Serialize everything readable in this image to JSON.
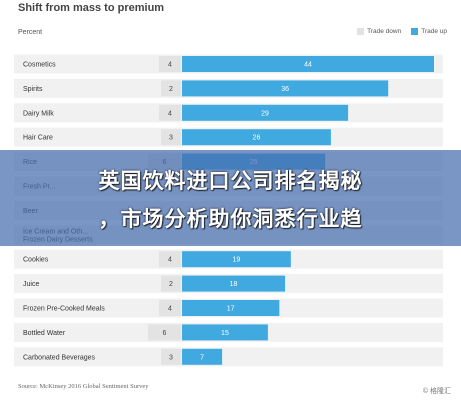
{
  "chart_data": {
    "type": "bar",
    "title": "Shift from mass to premium",
    "axis_caption": "Percent",
    "legend": [
      {
        "label": "Trade down",
        "color": "#e3e3e3"
      },
      {
        "label": "Trade up",
        "color": "#40a9e0"
      }
    ],
    "categories": [
      "Cosmetics",
      "Spirits",
      "Dairy Milk",
      "Hair Care",
      "Rice",
      "Fresh Pr...",
      "Beer",
      "Ice Cream and Oth... Frozen Dairy Desserts",
      "Cookies",
      "Juice",
      "Frozen Pre-Cooked Meals",
      "Bottled Water",
      "Carbonated Beverages"
    ],
    "series": [
      {
        "name": "Trade down",
        "values": [
          4,
          2,
          4,
          3,
          6,
          null,
          null,
          null,
          4,
          2,
          4,
          6,
          3
        ]
      },
      {
        "name": "Trade up",
        "values": [
          44,
          36,
          29,
          26,
          25,
          null,
          null,
          null,
          19,
          18,
          17,
          15,
          7
        ]
      }
    ],
    "xlim": [
      0,
      44
    ],
    "grid": false,
    "legend_position": "top-right"
  },
  "source": "Source: McKinsey 2016 Global Sentiment Survey",
  "overlay": {
    "line1": "英国饮料进口公司排名揭秘",
    "line2": "，市场分析助你洞悉行业趋"
  },
  "watermark": "© 格隆汇",
  "colors": {
    "trade_up": "#40a9e0",
    "trade_down": "#e3e3e3",
    "row_band": "#f1f1f1",
    "overlay": "#466eaf"
  }
}
